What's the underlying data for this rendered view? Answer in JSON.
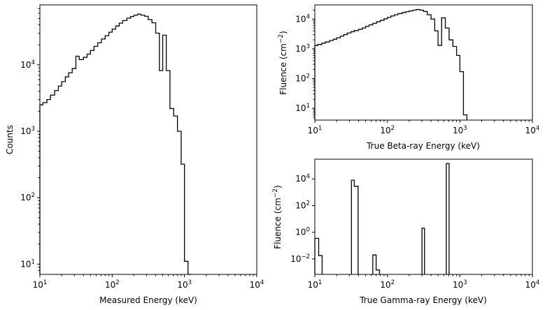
{
  "chart_data": [
    {
      "type": "line",
      "drawstyle": "step-histogram",
      "xlabel": "Measured Energy (keV)",
      "ylabel": "Counts",
      "xscale": "log",
      "yscale": "log",
      "xlim": [
        10,
        10000
      ],
      "ylim": [
        7,
        80000
      ],
      "xticks": [
        {
          "v": 10,
          "base": "10",
          "exp": "1"
        },
        {
          "v": 100,
          "base": "10",
          "exp": "2"
        },
        {
          "v": 1000,
          "base": "10",
          "exp": "3"
        },
        {
          "v": 10000,
          "base": "10",
          "exp": "4"
        }
      ],
      "yticks": [
        {
          "v": 10,
          "base": "10",
          "exp": "1"
        },
        {
          "v": 100,
          "base": "10",
          "exp": "2"
        },
        {
          "v": 1000,
          "base": "10",
          "exp": "3"
        },
        {
          "v": 10000,
          "base": "10",
          "exp": "4"
        }
      ],
      "bin_edges": [
        10,
        11,
        12.5,
        14,
        16,
        18,
        20,
        22.5,
        25,
        28,
        31.5,
        35,
        40,
        45,
        50,
        56,
        63,
        71,
        80,
        90,
        100,
        112,
        125,
        140,
        160,
        180,
        200,
        225,
        250,
        280,
        315,
        355,
        400,
        450,
        500,
        560,
        630,
        710,
        800,
        900,
        1000,
        1120,
        1250
      ],
      "values": [
        2500,
        2700,
        3000,
        3500,
        4100,
        4800,
        5600,
        6600,
        7600,
        8800,
        13500,
        12000,
        13000,
        14500,
        16500,
        19000,
        21500,
        24500,
        27500,
        31000,
        34500,
        38500,
        42500,
        46500,
        50500,
        53500,
        56000,
        58000,
        56000,
        54000,
        48000,
        43000,
        30000,
        8200,
        28000,
        8200,
        2200,
        1700,
        1000,
        320,
        11,
        6
      ]
    },
    {
      "type": "line",
      "drawstyle": "step-histogram",
      "xlabel": "True Beta-ray Energy (keV)",
      "ylabel_main": "Fluence (cm",
      "ylabel_sup": "−2",
      "ylabel_tail": ")",
      "xscale": "log",
      "yscale": "log",
      "xlim": [
        10,
        10000
      ],
      "ylim": [
        4,
        30000
      ],
      "xticks": [
        {
          "v": 10,
          "base": "10",
          "exp": "1"
        },
        {
          "v": 100,
          "base": "10",
          "exp": "2"
        },
        {
          "v": 1000,
          "base": "10",
          "exp": "3"
        },
        {
          "v": 10000,
          "base": "10",
          "exp": "4"
        }
      ],
      "yticks": [
        {
          "v": 10,
          "base": "10",
          "exp": "1"
        },
        {
          "v": 100,
          "base": "10",
          "exp": "2"
        },
        {
          "v": 1000,
          "base": "10",
          "exp": "3"
        },
        {
          "v": 10000,
          "base": "10",
          "exp": "4"
        }
      ],
      "bin_edges": [
        10,
        11,
        12.5,
        14,
        16,
        18,
        20,
        22.5,
        25,
        28,
        31.5,
        35,
        40,
        45,
        50,
        56,
        63,
        71,
        80,
        90,
        100,
        112,
        125,
        140,
        160,
        180,
        200,
        225,
        250,
        280,
        315,
        355,
        400,
        450,
        500,
        560,
        630,
        710,
        800,
        900,
        1000,
        1120,
        1250
      ],
      "values": [
        1300,
        1400,
        1550,
        1700,
        1900,
        2100,
        2350,
        2650,
        3000,
        3400,
        3750,
        4100,
        4500,
        5000,
        5700,
        6400,
        7200,
        8100,
        9100,
        10200,
        11400,
        12700,
        14000,
        15300,
        16600,
        17700,
        18800,
        20000,
        21000,
        20000,
        18000,
        14000,
        10000,
        4000,
        1300,
        11000,
        5000,
        2000,
        1200,
        600,
        170,
        6
      ]
    },
    {
      "type": "line",
      "drawstyle": "step-histogram",
      "xlabel": "True Gamma-ray Energy (keV)",
      "ylabel_main": "Fluence (cm",
      "ylabel_sup": "−2",
      "ylabel_tail": ")",
      "xscale": "log",
      "yscale": "log",
      "xlim": [
        10,
        10000
      ],
      "ylim": [
        0.0007,
        300000
      ],
      "xticks": [
        {
          "v": 10,
          "base": "10",
          "exp": "1"
        },
        {
          "v": 100,
          "base": "10",
          "exp": "2"
        },
        {
          "v": 1000,
          "base": "10",
          "exp": "3"
        },
        {
          "v": 10000,
          "base": "10",
          "exp": "4"
        }
      ],
      "yticks": [
        {
          "v": 0.01,
          "base": "10",
          "exp": "−2"
        },
        {
          "v": 1,
          "base": "10",
          "exp": "0"
        },
        {
          "v": 100,
          "base": "10",
          "exp": "2"
        },
        {
          "v": 10000,
          "base": "10",
          "exp": "4"
        }
      ],
      "segments": [
        {
          "edges": [
            10,
            11.3,
            12.6
          ],
          "values": [
            0.35,
            0.018
          ]
        },
        {
          "edges": [
            32,
            35,
            39.5
          ],
          "values": [
            8000,
            2800
          ]
        },
        {
          "edges": [
            63,
            70,
            78
          ],
          "values": [
            0.02,
            0.0015
          ]
        },
        {
          "edges": [
            300,
            325
          ],
          "values": [
            2.0
          ]
        },
        {
          "edges": [
            650,
            710
          ],
          "values": [
            140000
          ]
        }
      ]
    }
  ]
}
